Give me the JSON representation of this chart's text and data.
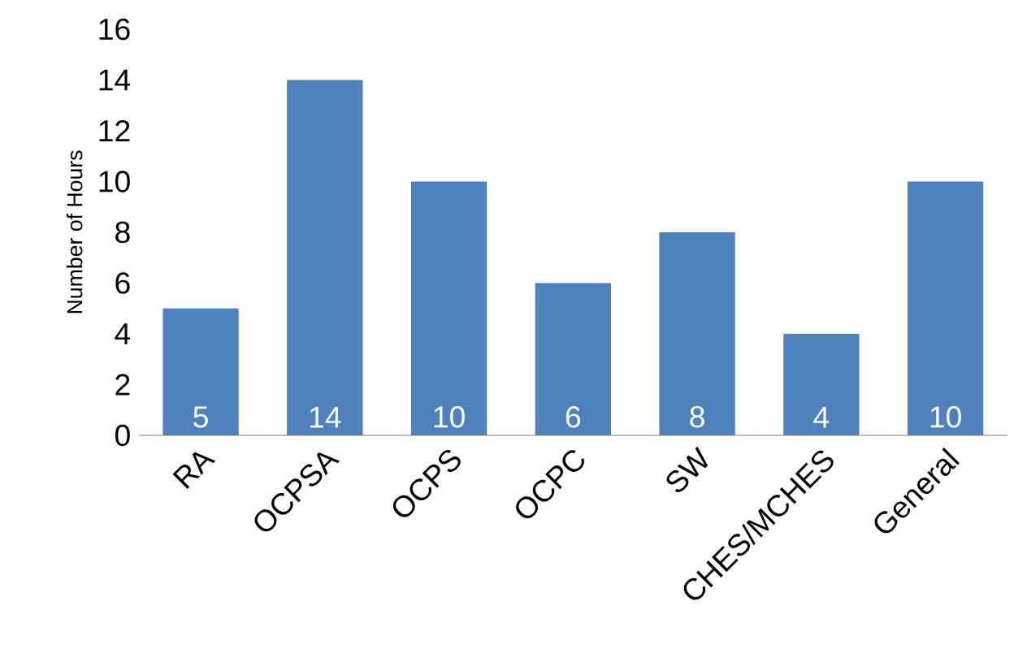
{
  "chart_data": {
    "type": "bar",
    "ylabel": "Number of Hours",
    "categories": [
      "RA",
      "OCPSA",
      "OCPS",
      "OCPC",
      "SW",
      "CHES/MCHES",
      "General"
    ],
    "values": [
      5,
      14,
      10,
      6,
      8,
      4,
      10
    ],
    "color": "#4f81bd",
    "ylim": [
      0,
      16
    ],
    "yticks": [
      0,
      2,
      4,
      6,
      8,
      10,
      12,
      14,
      16
    ],
    "data_labels": true
  }
}
